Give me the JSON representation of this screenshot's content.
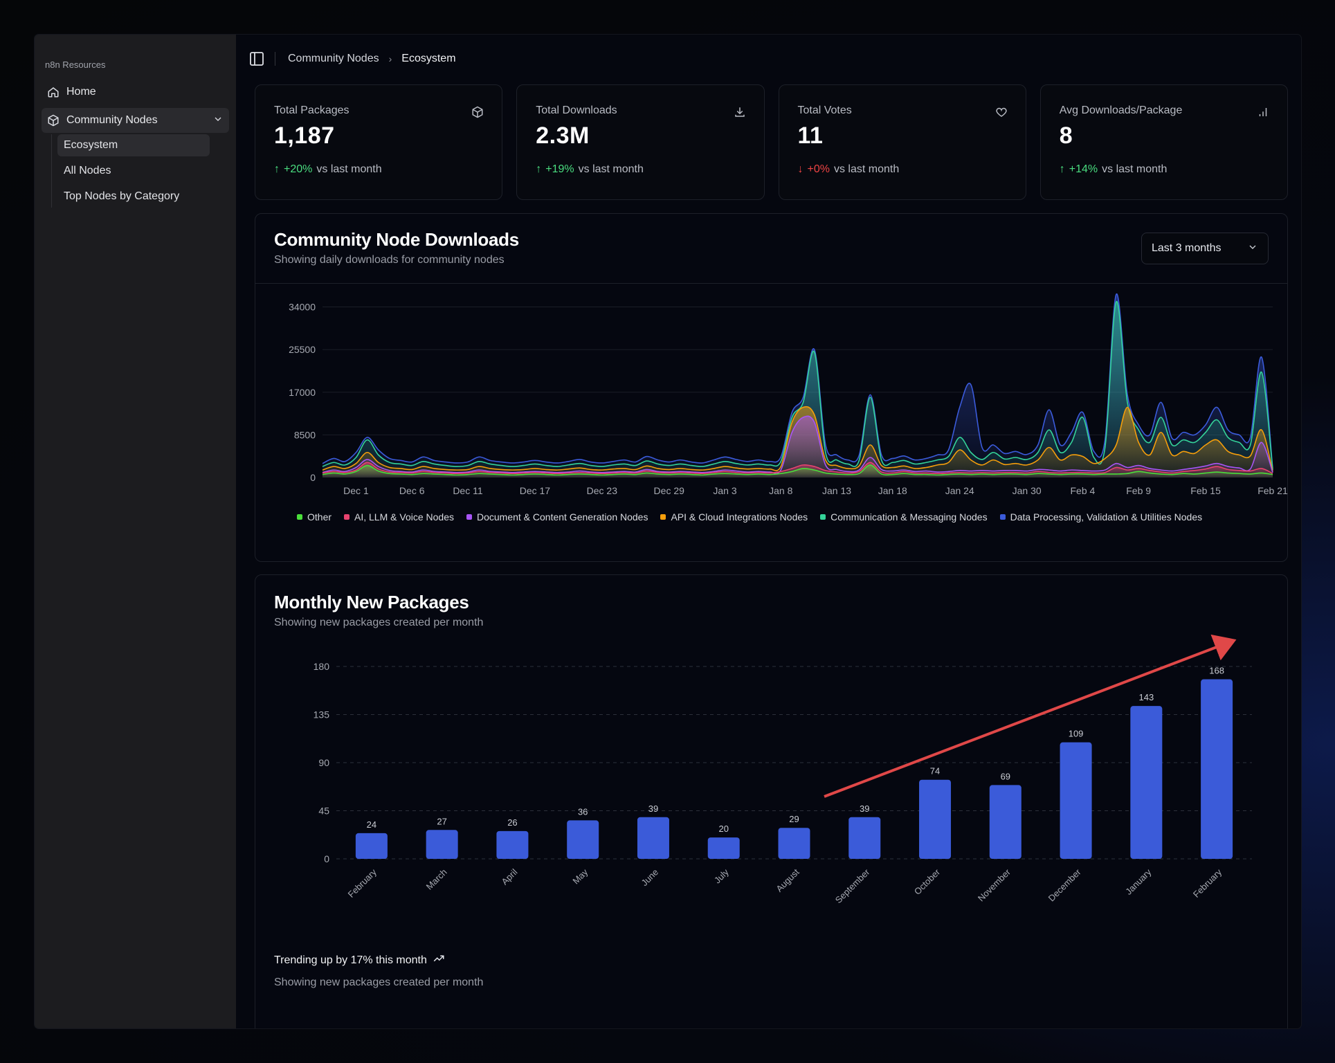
{
  "sidebar": {
    "group_label": "n8n Resources",
    "home": "Home",
    "community": "Community Nodes",
    "sub": [
      "Ecosystem",
      "All Nodes",
      "Top Nodes by Category"
    ]
  },
  "breadcrumb": {
    "parent": "Community Nodes",
    "current": "Ecosystem"
  },
  "stats": [
    {
      "label": "Total Packages",
      "value": "1,187",
      "delta": "+20%",
      "dir": "up",
      "suffix": "vs last month",
      "icon": "package-icon"
    },
    {
      "label": "Total Downloads",
      "value": "2.3M",
      "delta": "+19%",
      "dir": "up",
      "suffix": "vs last month",
      "icon": "download-icon"
    },
    {
      "label": "Total Votes",
      "value": "11",
      "delta": "+0%",
      "dir": "down",
      "suffix": "vs last month",
      "icon": "heart-icon"
    },
    {
      "label": "Avg Downloads/Package",
      "value": "8",
      "delta": "+14%",
      "dir": "up",
      "suffix": "vs last month",
      "icon": "bar-chart-icon"
    }
  ],
  "downloads_panel": {
    "title": "Community Node Downloads",
    "subtitle": "Showing daily downloads for community nodes",
    "range": "Last 3 months"
  },
  "packages_panel": {
    "title": "Monthly New Packages",
    "subtitle": "Showing new packages created per month",
    "trend": "Trending up by 17% this month",
    "footer_sub": "Showing new packages created per month"
  },
  "colors": {
    "other": "#4ade3a",
    "ai": "#e8436f",
    "doc": "#a855f7",
    "api": "#f59e0b",
    "comm": "#34d399",
    "data": "#3b5bdb",
    "bar": "#3b5bd9",
    "arrow": "#e04848"
  },
  "chart_data": [
    {
      "type": "area",
      "title": "Community Node Downloads",
      "x_ticks": [
        "Dec 1",
        "Dec 6",
        "Dec 11",
        "Dec 17",
        "Dec 23",
        "Dec 29",
        "Jan 3",
        "Jan 8",
        "Jan 13",
        "Jan 18",
        "Jan 24",
        "Jan 30",
        "Feb 4",
        "Feb 9",
        "Feb 15",
        "Feb 21"
      ],
      "y_ticks": [
        0,
        8500,
        17000,
        25500,
        34000
      ],
      "ylim": [
        0,
        36000
      ],
      "stacked": false,
      "series": [
        {
          "name": "Other",
          "color": "#4ade3a",
          "values": [
            600,
            900,
            700,
            1200,
            2400,
            1300,
            800,
            700,
            600,
            800,
            700,
            600,
            500,
            600,
            800,
            700,
            600,
            500,
            600,
            700,
            600,
            500,
            600,
            700,
            600,
            500,
            600,
            700,
            600,
            900,
            700,
            600,
            700,
            600,
            500,
            700,
            800,
            700,
            600,
            700,
            600,
            800,
            1200,
            1800,
            1500,
            900,
            700,
            600,
            800,
            2500,
            700,
            600,
            800,
            600,
            600,
            500,
            600,
            700,
            600,
            700,
            600,
            700,
            700,
            600,
            800,
            700,
            600,
            700,
            700,
            600,
            700,
            700,
            800,
            1200,
            900,
            700,
            600,
            800,
            700,
            900,
            1100,
            900,
            800,
            700,
            900,
            600
          ]
        },
        {
          "name": "AI, LLM & Voice Nodes",
          "color": "#e8436f",
          "values": [
            900,
            1200,
            1000,
            1500,
            3000,
            1700,
            1100,
            1000,
            900,
            1200,
            1000,
            900,
            800,
            900,
            1200,
            1000,
            900,
            800,
            900,
            1000,
            900,
            800,
            900,
            1000,
            900,
            800,
            900,
            1000,
            900,
            1300,
            1000,
            900,
            1000,
            900,
            800,
            1000,
            1200,
            1000,
            900,
            1000,
            900,
            1200,
            1800,
            2500,
            2200,
            1400,
            1100,
            900,
            1200,
            3000,
            1100,
            900,
            1200,
            900,
            900,
            800,
            900,
            1000,
            900,
            1000,
            900,
            1000,
            1000,
            900,
            1200,
            1000,
            900,
            1000,
            1000,
            900,
            1000,
            2000,
            1500,
            1800,
            1400,
            1100,
            900,
            1200,
            1400,
            1700,
            2200,
            1600,
            1400,
            1300,
            1800,
            800
          ]
        },
        {
          "name": "Document & Content Generation Nodes",
          "color": "#a855f7",
          "values": [
            1000,
            1500,
            1200,
            2000,
            3600,
            2200,
            1400,
            1200,
            1100,
            1500,
            1200,
            1100,
            1000,
            1100,
            1500,
            1200,
            1100,
            1000,
            1100,
            1200,
            1100,
            1000,
            1100,
            1300,
            1100,
            1000,
            1100,
            1200,
            1100,
            1600,
            1200,
            1100,
            1200,
            1100,
            1000,
            1200,
            1500,
            1300,
            1100,
            1200,
            1100,
            1500,
            9000,
            12000,
            11000,
            2500,
            1600,
            1200,
            1500,
            4000,
            1600,
            1300,
            1500,
            1200,
            1300,
            1100,
            1200,
            1400,
            1300,
            1400,
            1300,
            1400,
            1400,
            1300,
            1600,
            1500,
            1300,
            1500,
            1400,
            1300,
            1500,
            2800,
            2000,
            2400,
            1800,
            1500,
            1300,
            1600,
            1900,
            2300,
            2800,
            2200,
            1900,
            1700,
            7000,
            1000
          ]
        },
        {
          "name": "API & Cloud Integrations Nodes",
          "color": "#f59e0b",
          "values": [
            1500,
            2200,
            1800,
            2800,
            5000,
            3000,
            2000,
            1800,
            1600,
            2200,
            1800,
            1600,
            1500,
            1600,
            2200,
            1800,
            1600,
            1500,
            1600,
            1800,
            1600,
            1500,
            1700,
            1900,
            1600,
            1500,
            1700,
            1800,
            1600,
            2300,
            1800,
            1600,
            1800,
            1600,
            1500,
            1800,
            2200,
            1900,
            1700,
            1800,
            1700,
            2200,
            11000,
            14000,
            12500,
            3500,
            2400,
            1800,
            2300,
            6500,
            2400,
            2000,
            2300,
            1800,
            2000,
            2500,
            3000,
            5500,
            3500,
            2500,
            3500,
            2600,
            2800,
            2500,
            3500,
            6000,
            3500,
            4500,
            4200,
            2800,
            3800,
            6500,
            14000,
            7000,
            4500,
            9000,
            4500,
            5200,
            4800,
            6500,
            7500,
            5200,
            4500,
            4300,
            9500,
            1200
          ]
        },
        {
          "name": "Communication & Messaging Nodes",
          "color": "#34d399",
          "values": [
            2200,
            3000,
            2500,
            4000,
            7500,
            4500,
            3000,
            2700,
            2400,
            3200,
            2700,
            2400,
            2200,
            2400,
            3200,
            2700,
            2400,
            2200,
            2400,
            2700,
            2400,
            2200,
            2500,
            2800,
            2400,
            2200,
            2500,
            2700,
            2400,
            3300,
            2700,
            2400,
            2700,
            2400,
            2200,
            2700,
            3200,
            2800,
            2500,
            2700,
            2500,
            3200,
            12000,
            15000,
            25000,
            5000,
            3500,
            2700,
            3400,
            16000,
            3500,
            3000,
            3400,
            2700,
            3000,
            3500,
            4200,
            8000,
            5000,
            3600,
            5000,
            3700,
            4000,
            3600,
            5000,
            9500,
            5000,
            7000,
            12000,
            4000,
            6000,
            35000,
            15000,
            9500,
            7000,
            12000,
            6500,
            7500,
            7000,
            9000,
            11500,
            8000,
            7000,
            6500,
            21000,
            1500
          ]
        },
        {
          "name": "Data Processing, Validation & Utilities Nodes",
          "color": "#3b5bdb",
          "values": [
            2800,
            3800,
            3200,
            5000,
            8000,
            5500,
            3800,
            3400,
            3100,
            4100,
            3400,
            3100,
            2900,
            3100,
            4100,
            3400,
            3100,
            2900,
            3100,
            3400,
            3100,
            2900,
            3200,
            3600,
            3100,
            2900,
            3200,
            3500,
            3100,
            4200,
            3500,
            3100,
            3500,
            3100,
            2900,
            3500,
            4100,
            3600,
            3200,
            3500,
            3200,
            4100,
            13000,
            16000,
            25500,
            6500,
            4500,
            3500,
            4400,
            16500,
            4500,
            3800,
            4300,
            3500,
            3800,
            4500,
            5500,
            14000,
            18500,
            6000,
            6500,
            4800,
            5200,
            4600,
            6500,
            13500,
            6500,
            9000,
            13000,
            5200,
            7500,
            36500,
            16500,
            10500,
            8500,
            15000,
            7800,
            9000,
            8500,
            10500,
            14000,
            9500,
            8500,
            8000,
            24000,
            1800
          ]
        }
      ]
    },
    {
      "type": "bar",
      "title": "Monthly New Packages",
      "categories": [
        "February",
        "March",
        "April",
        "May",
        "June",
        "July",
        "August",
        "September",
        "October",
        "November",
        "December",
        "January",
        "February"
      ],
      "values": [
        24,
        27,
        26,
        36,
        39,
        20,
        29,
        39,
        74,
        69,
        109,
        143,
        168
      ],
      "y_ticks": [
        0,
        45,
        90,
        135,
        180
      ],
      "ylim": [
        0,
        180
      ]
    }
  ]
}
